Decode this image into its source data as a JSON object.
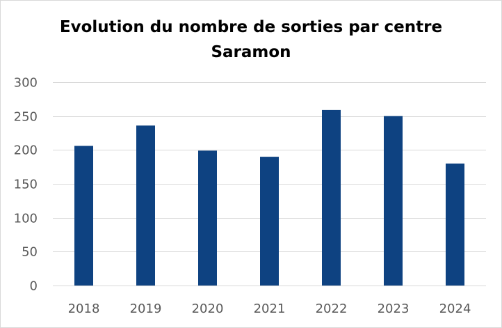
{
  "chart_data": {
    "type": "bar",
    "title": "Evolution du nombre de sorties par centre",
    "subtitle": "Saramon",
    "categories": [
      "2018",
      "2019",
      "2020",
      "2021",
      "2022",
      "2023",
      "2024"
    ],
    "values": [
      206,
      236,
      199,
      190,
      259,
      250,
      180
    ],
    "xlabel": "",
    "ylabel": "",
    "ylim": [
      0,
      300
    ],
    "yticks": [
      0,
      50,
      100,
      150,
      200,
      250,
      300
    ],
    "grid": true,
    "legend": "none",
    "colors": {
      "bar": "#0E4281",
      "grid": "#d9d9d9",
      "tick_text": "#595959"
    }
  }
}
